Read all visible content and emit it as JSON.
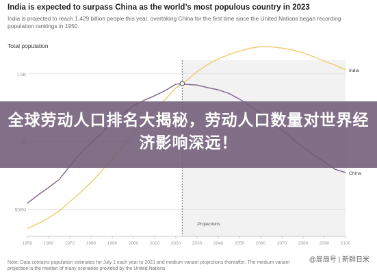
{
  "header": {
    "title": "India is expected to surpass China as the world’s most populous country in 2023",
    "subtitle": "India is projected to reach 1.429 billion people this year, overtaking China for the first time since the United Nations began recording population rankings in 1950.",
    "section_label": "Total population"
  },
  "banner": {
    "text": "全球劳动人口排名大揭秘，劳动人口数量对世界经济影响深远！",
    "color": "#705c78"
  },
  "footer": {
    "note": "Note: Data contains population estimates for July 1 each year to 2021 and medium variant projections thereafter. The medium variant projection is the median of many scenarios provided by the United Nations.",
    "watermark": "@局局号 | 新鲜日米"
  },
  "chart_data": {
    "type": "line",
    "title": "Total population",
    "xlabel": "",
    "ylabel": "",
    "xlim": [
      1950,
      2100
    ],
    "ylim": [
      300,
      1600
    ],
    "x_ticks": [
      "1950",
      "1960",
      "1970",
      "1980",
      "1990",
      "2000",
      "2010",
      "2020",
      "2030",
      "2040",
      "2050",
      "2060",
      "2070",
      "2080",
      "2090",
      "2100"
    ],
    "y_ticks": [
      {
        "value": 500,
        "label": "500M"
      },
      {
        "value": 1000,
        "label": "1B"
      },
      {
        "value": 1500,
        "label": "1.5B"
      }
    ],
    "grid": true,
    "projection": {
      "start": 2023,
      "label": "Projections"
    },
    "x": [
      1950,
      1955,
      1960,
      1965,
      1970,
      1975,
      1980,
      1985,
      1990,
      1995,
      2000,
      2005,
      2010,
      2015,
      2020,
      2023,
      2025,
      2030,
      2035,
      2040,
      2045,
      2050,
      2055,
      2060,
      2065,
      2070,
      2075,
      2080,
      2085,
      2090,
      2095,
      2100
    ],
    "series": [
      {
        "name": "India",
        "color": "#f0c96a",
        "values": [
          357,
          394,
          436,
          487,
          555,
          622,
          697,
          782,
          870,
          964,
          1057,
          1147,
          1234,
          1310,
          1396,
          1429,
          1451,
          1515,
          1569,
          1610,
          1642,
          1668,
          1689,
          1701,
          1699,
          1690,
          1677,
          1655,
          1626,
          1593,
          1565,
          1530
        ]
      },
      {
        "name": "China",
        "color": "#7c5f8c",
        "values": [
          544,
          605,
          660,
          720,
          818,
          915,
          990,
          1059,
          1150,
          1204,
          1264,
          1304,
          1338,
          1376,
          1424,
          1426,
          1422,
          1417,
          1398,
          1382,
          1355,
          1313,
          1265,
          1210,
          1150,
          1085,
          1020,
          957,
          900,
          850,
          795,
          771
        ]
      }
    ]
  }
}
